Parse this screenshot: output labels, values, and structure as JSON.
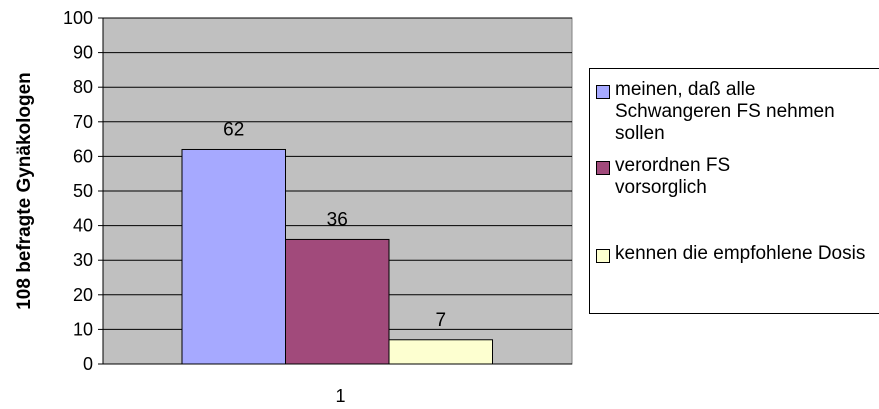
{
  "chart_data": {
    "type": "bar",
    "categories": [
      "1"
    ],
    "ylabel": "108 befragte Gynäkologen",
    "xlabel": "",
    "ylim": [
      0,
      100
    ],
    "yticks": [
      0,
      10,
      20,
      30,
      40,
      50,
      60,
      70,
      80,
      90,
      100
    ],
    "grid": true,
    "legend_position": "right",
    "plot_background": "#c0c0c0",
    "series": [
      {
        "name": "meinen, daß alle Schwangeren FS nehmen sollen",
        "values": [
          62
        ],
        "color": "#a6a9ff"
      },
      {
        "name": "verordnen FS vorsorglich",
        "values": [
          36
        ],
        "color": "#a14a7b"
      },
      {
        "name": "kennen die empfohlene Dosis",
        "values": [
          7
        ],
        "color": "#fdffd0"
      }
    ]
  }
}
